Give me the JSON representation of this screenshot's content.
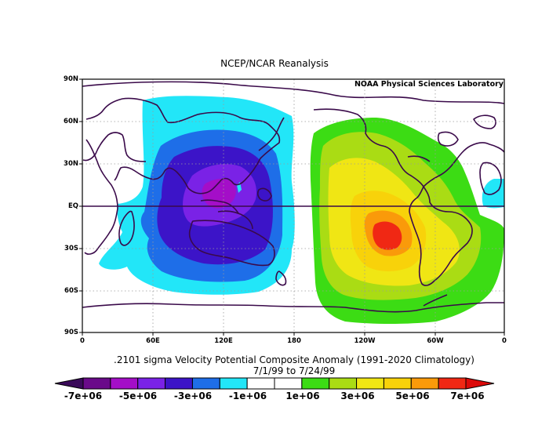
{
  "header": {
    "title": "NCEP/NCAR Reanalysis",
    "credit": "NOAA Physical Sciences Laboratory"
  },
  "axes": {
    "lat_labels": [
      "90N",
      "60N",
      "30N",
      "EQ",
      "30S",
      "60S",
      "90S"
    ],
    "lon_labels": [
      "0",
      "60E",
      "120E",
      "180",
      "120W",
      "60W",
      "0"
    ]
  },
  "caption": {
    "line1": ".2101 sigma Velocity Potential  Composite Anomaly (1991-2020 Climatology)",
    "line2": "7/1/99  to 7/24/99"
  },
  "colorbar": {
    "colors": [
      "#6a0a8a",
      "#a40ec8",
      "#7a22e6",
      "#3c14c8",
      "#1e6ee8",
      "#22e6f8",
      "#ffffff",
      "#ffffff",
      "#3cdc14",
      "#aadc14",
      "#f0e614",
      "#f8d20a",
      "#fa9a0a",
      "#f02814"
    ],
    "labels": [
      "-7e+06",
      "-5e+06",
      "-3e+06",
      "-1e+06",
      "1e+06",
      "3e+06",
      "5e+06",
      "7e+06"
    ],
    "triangle_left_color": "#3a0a5a",
    "triangle_right_color": "#dc0a0a"
  },
  "colors": {
    "coastline": "#3a0a4a",
    "map_background": "#ffffff",
    "grid": "#9a9a9a",
    "equator": "#3a0a4a"
  }
}
